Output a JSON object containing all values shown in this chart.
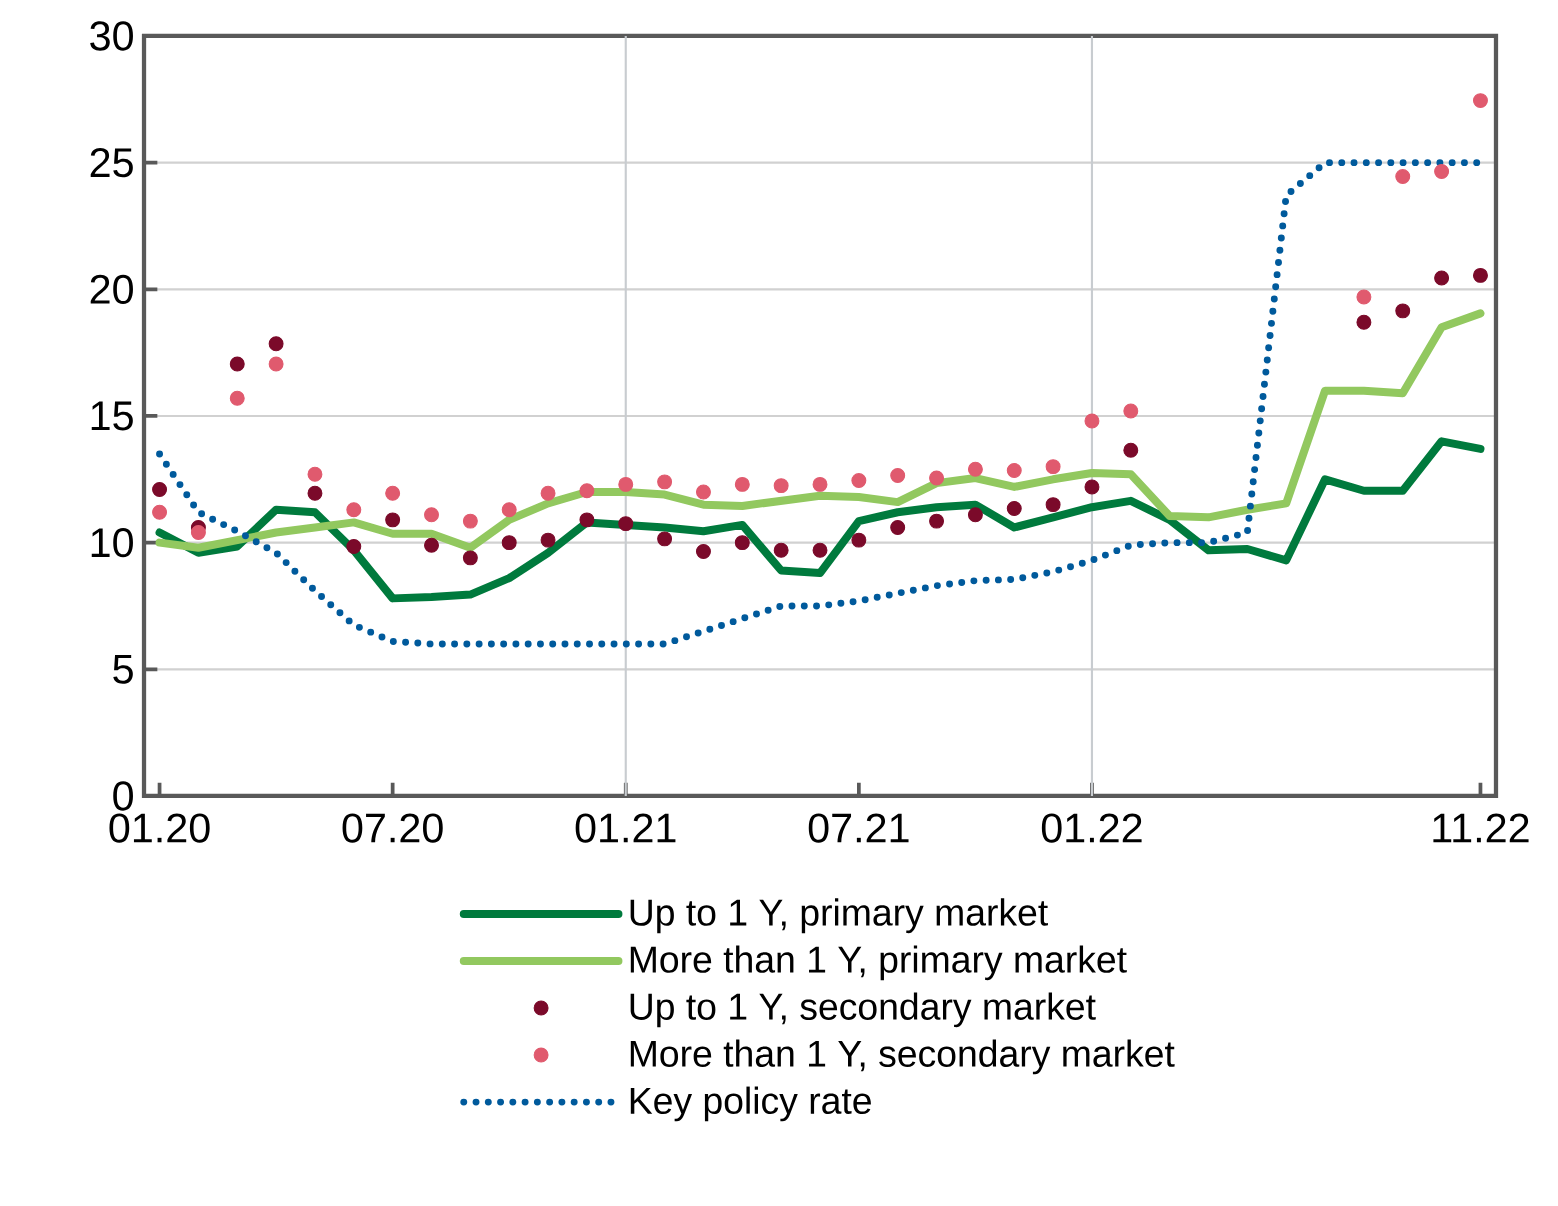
{
  "chart_data": {
    "type": "line",
    "x": [
      "2020-01",
      "2020-02",
      "2020-03",
      "2020-04",
      "2020-05",
      "2020-06",
      "2020-07",
      "2020-08",
      "2020-09",
      "2020-10",
      "2020-11",
      "2020-12",
      "2021-01",
      "2021-02",
      "2021-03",
      "2021-04",
      "2021-05",
      "2021-06",
      "2021-07",
      "2021-08",
      "2021-09",
      "2021-10",
      "2021-11",
      "2021-12",
      "2022-01",
      "2022-02",
      "2022-03",
      "2022-04",
      "2022-05",
      "2022-06",
      "2022-07",
      "2022-08",
      "2022-09",
      "2022-10",
      "2022-11"
    ],
    "series": [
      {
        "name": "Up to 1 Y, primary market",
        "color": "#007a3d",
        "line_style": "solid",
        "values": [
          10.4,
          9.6,
          9.85,
          11.3,
          11.2,
          9.7,
          7.8,
          7.85,
          7.95,
          8.6,
          9.6,
          10.8,
          10.7,
          10.6,
          10.45,
          10.7,
          8.9,
          8.8,
          10.85,
          11.2,
          11.4,
          11.5,
          10.6,
          11.0,
          11.4,
          11.65,
          10.9,
          9.7,
          9.75,
          9.3,
          12.5,
          12.05,
          12.05,
          14.0,
          13.7
        ]
      },
      {
        "name": "More than 1 Y, primary market",
        "color": "#92c85f",
        "line_style": "solid",
        "values": [
          10.0,
          9.8,
          10.1,
          10.4,
          10.6,
          10.8,
          10.35,
          10.35,
          9.8,
          10.9,
          11.55,
          12.0,
          12.0,
          11.9,
          11.5,
          11.45,
          11.65,
          11.85,
          11.8,
          11.6,
          12.35,
          12.55,
          12.2,
          12.5,
          12.75,
          12.7,
          11.05,
          11.0,
          11.3,
          11.55,
          16.0,
          16.0,
          15.9,
          18.5,
          19.05
        ]
      },
      {
        "name": "Up to 1 Y, secondary market",
        "type": "scatter",
        "marker": "circle",
        "color": "#7b0a2a",
        "values": [
          12.1,
          10.6,
          17.05,
          17.85,
          11.95,
          9.85,
          10.9,
          9.9,
          9.4,
          10.0,
          10.1,
          10.9,
          10.75,
          10.15,
          9.65,
          10.0,
          9.7,
          9.7,
          10.1,
          10.6,
          10.85,
          11.1,
          11.35,
          11.5,
          12.2,
          13.65,
          null,
          null,
          null,
          null,
          null,
          18.7,
          19.15,
          20.45,
          20.55
        ]
      },
      {
        "name": "More than 1 Y, secondary market",
        "type": "scatter",
        "marker": "circle",
        "color": "#e05a6e",
        "values": [
          11.2,
          10.4,
          15.7,
          17.05,
          12.7,
          11.3,
          11.95,
          11.1,
          10.85,
          11.3,
          11.95,
          12.05,
          12.3,
          12.4,
          12.0,
          12.3,
          12.25,
          12.3,
          12.45,
          12.65,
          12.55,
          12.9,
          12.85,
          13.0,
          14.8,
          15.2,
          null,
          null,
          null,
          null,
          null,
          19.7,
          24.45,
          24.65,
          27.45
        ]
      },
      {
        "name": "Key policy rate",
        "color": "#005a9c",
        "line_style": "dotted",
        "values": [
          13.5,
          11.2,
          10.45,
          9.6,
          8.1,
          6.75,
          6.1,
          6,
          6,
          6,
          6,
          6,
          6,
          6,
          6.5,
          7.0,
          7.5,
          7.5,
          7.7,
          8.0,
          8.3,
          8.5,
          8.55,
          8.85,
          9.3,
          9.9,
          10,
          10,
          10.4,
          23.7,
          25,
          25,
          25,
          25,
          25
        ]
      }
    ],
    "xlim": [
      "2019-12-19",
      "2022-11-13"
    ],
    "xticks": [
      {
        "value": "2020-01",
        "label": "01.20"
      },
      {
        "value": "2020-07",
        "label": "07.20"
      },
      {
        "value": "2021-01",
        "label": "01.21"
      },
      {
        "value": "2021-07",
        "label": "07.21"
      },
      {
        "value": "2022-01",
        "label": "01.22"
      },
      {
        "value": "2022-11",
        "label": "11.22"
      }
    ],
    "ylim": [
      0,
      30
    ],
    "yticks": [
      0,
      5,
      10,
      15,
      20,
      25,
      30
    ],
    "grid": "y",
    "ref_lines": [
      {
        "axis": "x",
        "value": "2021-01",
        "color": "#c8ccd0"
      },
      {
        "axis": "x",
        "value": "2022-01",
        "color": "#c8ccd0"
      }
    ],
    "legend": "bottom"
  }
}
